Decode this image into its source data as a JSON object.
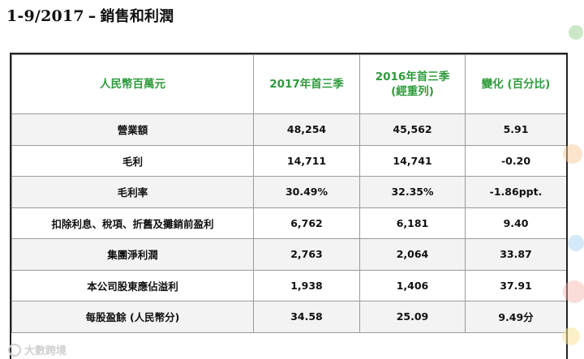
{
  "title": {
    "period": "1-9/2017",
    "dash": "–",
    "text": "銷售和利潤"
  },
  "table": {
    "headers": [
      "人民幣百萬元",
      "2017年首三季",
      "2016年首三季",
      "變化 (百分比)"
    ],
    "header_sub": [
      "",
      "",
      "(經重列)",
      ""
    ],
    "rows": [
      {
        "label": "營業額",
        "v2017": "48,254",
        "v2016": "45,562",
        "change": "5.91"
      },
      {
        "label": "毛利",
        "v2017": "14,711",
        "v2016": "14,741",
        "change": "-0.20"
      },
      {
        "label": "毛利率",
        "v2017": "30.49%",
        "v2016": "32.35%",
        "change": "-1.86ppt."
      },
      {
        "label": "扣除利息、稅項、折舊及攤銷前盈利",
        "v2017": "6,762",
        "v2016": "6,181",
        "change": "9.40"
      },
      {
        "label": "集團淨利潤",
        "v2017": "2,763",
        "v2016": "2,064",
        "change": "33.87"
      },
      {
        "label": "本公司股東應佔溢利",
        "v2017": "1,938",
        "v2016": "1,406",
        "change": "37.91"
      },
      {
        "label": "每股盈餘 (人民幣分)",
        "v2017": "34.58",
        "v2016": "25.09",
        "change": "9.49分"
      }
    ]
  },
  "watermark": "大數跨境",
  "colors": {
    "header_text": "#2e9b3c",
    "row_shade": "#f3f3f3",
    "border": "#9a9a9a"
  }
}
